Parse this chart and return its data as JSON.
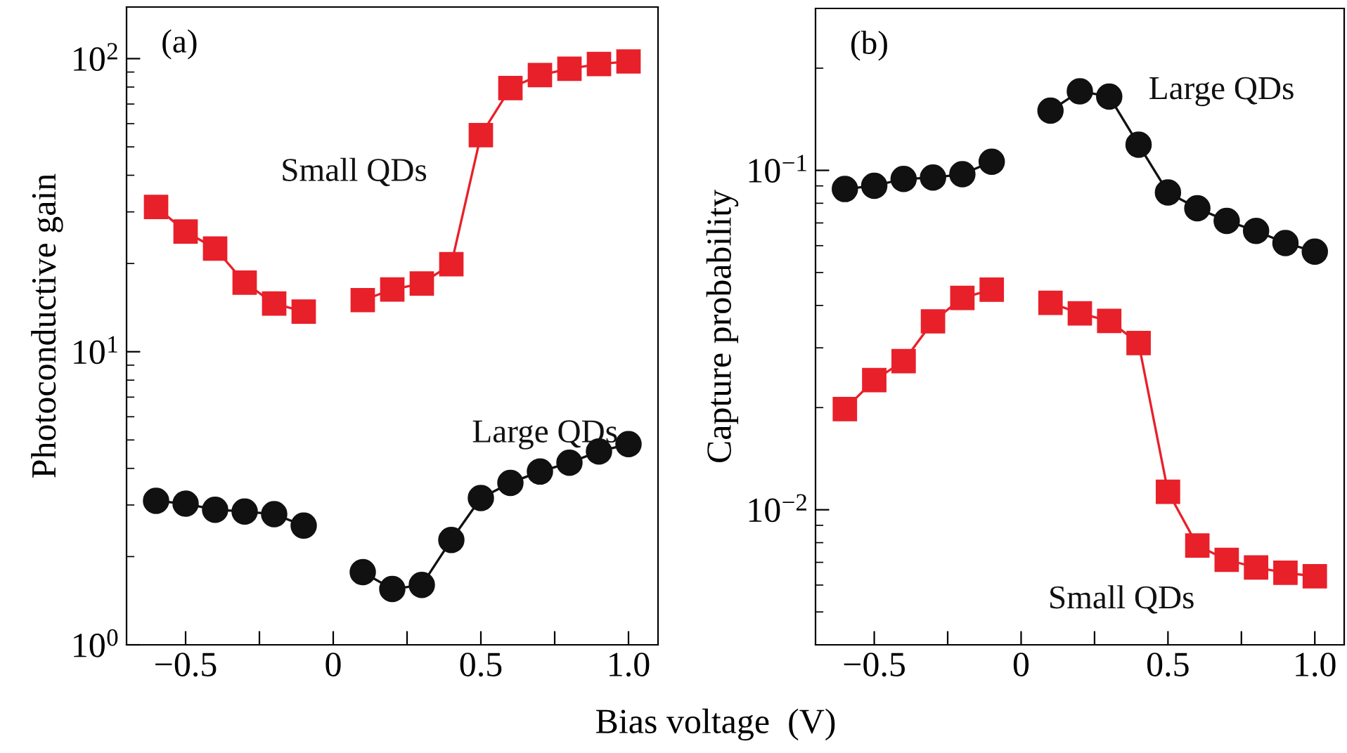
{
  "chart_data": [
    {
      "type": "line",
      "ylabel": "Photoconductive gain",
      "xlabel": "Bias voltage  (V)",
      "annotations": [
        "(a)"
      ],
      "log": "y",
      "line_style": "solid",
      "grid": false,
      "legend": false,
      "x": [
        -0.6,
        -0.5,
        -0.4,
        -0.3,
        -0.2,
        -0.1,
        0,
        0.1,
        0.2,
        0.3,
        0.4,
        0.5,
        0.6,
        0.7,
        0.8,
        0.9,
        1.0
      ],
      "xlim": [
        -0.7,
        1.1
      ],
      "xticks": [
        {
          "value": -0.5,
          "label": "−0.5"
        },
        {
          "value": -0.25,
          "label": null
        },
        0,
        {
          "value": 0.25,
          "label": null
        },
        0.5,
        {
          "value": 0.75,
          "label": null
        },
        {
          "value": 1.0,
          "label": "1.0"
        }
      ],
      "ylim": [
        1,
        150
      ],
      "yticks": [
        {
          "value": 1,
          "label": "10$^{0}$"
        },
        {
          "value": 10,
          "label": "10$^{1}$"
        },
        {
          "value": 100,
          "label": "10$^{2}$"
        }
      ],
      "series": [
        {
          "name": "Small QDs",
          "color": "#e8202a",
          "marker": "square",
          "values": [
            31.2,
            25.7,
            22.5,
            17.2,
            14.6,
            13.7,
            null,
            15.0,
            16.3,
            17.1,
            19.9,
            54.8,
            79.4,
            87.9,
            92.4,
            95.9,
            97.8
          ]
        },
        {
          "name": "Large QDs",
          "color": "#111111",
          "marker": "circle",
          "values": [
            3.1,
            3.03,
            2.89,
            2.85,
            2.79,
            2.55,
            null,
            1.77,
            1.55,
            1.6,
            2.28,
            3.17,
            3.57,
            3.9,
            4.18,
            4.57,
            4.84
          ]
        }
      ]
    },
    {
      "type": "line",
      "ylabel": "Capture probability",
      "annotations": [
        "(b)"
      ],
      "log": "y",
      "line_style": "solid",
      "grid": false,
      "legend": false,
      "x": [
        -0.6,
        -0.5,
        -0.4,
        -0.3,
        -0.2,
        -0.1,
        0,
        0.1,
        0.2,
        0.3,
        0.4,
        0.5,
        0.6,
        0.7,
        0.8,
        0.9,
        1.0
      ],
      "xlim": [
        -0.7,
        1.1
      ],
      "xticks": [
        {
          "value": -0.5,
          "label": "−0.5"
        },
        {
          "value": -0.25,
          "label": null
        },
        0,
        {
          "value": 0.25,
          "label": null
        },
        0.5,
        {
          "value": 0.75,
          "label": null
        },
        {
          "value": 1.0,
          "label": "1.0"
        }
      ],
      "ylim": [
        0.004,
        0.3
      ],
      "yticks": [
        {
          "value": 0.01,
          "label": "10$^{−2}$"
        },
        {
          "value": 0.1,
          "label": "10$^{−1}$"
        }
      ],
      "series": [
        {
          "name": "Large QDs",
          "color": "#111111",
          "marker": "circle",
          "values": [
            0.0881,
            0.0901,
            0.0943,
            0.0952,
            0.0974,
            0.106,
            null,
            0.15,
            0.171,
            0.165,
            0.119,
            0.0861,
            0.0773,
            0.071,
            0.0663,
            0.0611,
            0.0576
          ]
        },
        {
          "name": "Small QDs",
          "color": "#e8202a",
          "marker": "square",
          "values": [
            0.0198,
            0.0241,
            0.0274,
            0.0359,
            0.0421,
            0.0445,
            null,
            0.0407,
            0.0379,
            0.036,
            0.031,
            0.0113,
            0.00785,
            0.00712,
            0.00676,
            0.00652,
            0.00637
          ]
        }
      ]
    }
  ]
}
